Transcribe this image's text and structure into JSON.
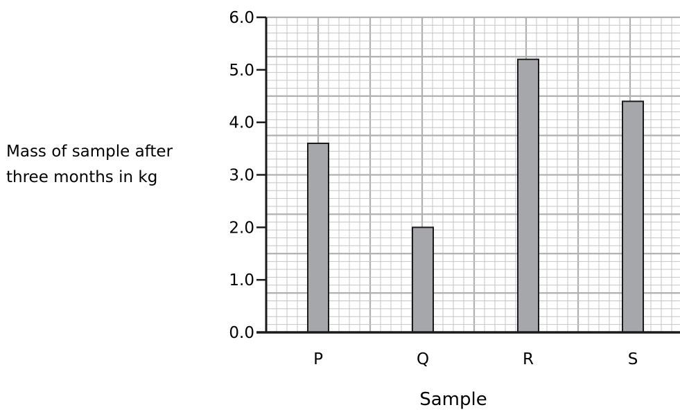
{
  "chart_data": {
    "type": "bar",
    "title": "",
    "xlabel": "Sample",
    "ylabel_lines": [
      "Mass of sample after",
      "three months in kg"
    ],
    "categories": [
      "P",
      "Q",
      "R",
      "S"
    ],
    "values": [
      3.6,
      2.0,
      5.2,
      4.4
    ],
    "ylim": [
      0,
      6
    ],
    "yticks": [
      "0.0",
      "1.0",
      "2.0",
      "3.0",
      "4.0",
      "5.0",
      "6.0"
    ],
    "grid": true,
    "bar_color": "#a6a7aa",
    "grid_minor_color": "#c4c4c4",
    "grid_major_color": "#b0b0b0",
    "axis_color": "#1a1a1a"
  }
}
